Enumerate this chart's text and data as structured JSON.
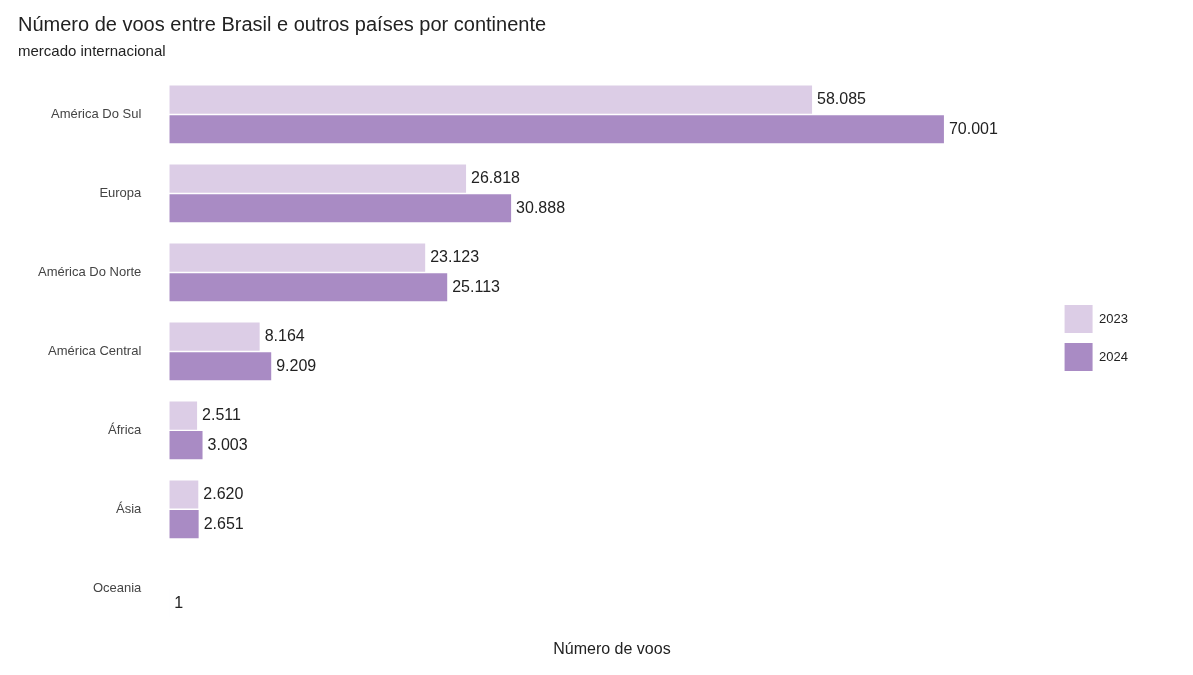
{
  "chart_data": {
    "type": "bar",
    "orientation": "horizontal",
    "title": "Número de voos entre Brasil e outros países por continente",
    "subtitle": "mercado internacional",
    "xlabel": "Número de voos",
    "categories": [
      "América Do Sul",
      "Europa",
      "América Do Norte",
      "América Central",
      "África",
      "Ásia",
      "Oceania"
    ],
    "series": [
      {
        "name": "2023",
        "color": "#dccde6",
        "values": [
          58085,
          26818,
          23123,
          8164,
          2511,
          2620,
          null
        ],
        "value_labels": [
          "58.085",
          "26.818",
          "23.123",
          "8.164",
          "2.511",
          "2.620",
          null
        ]
      },
      {
        "name": "2024",
        "color": "#a98bc4",
        "values": [
          70001,
          30888,
          25113,
          9209,
          3003,
          2651,
          1
        ],
        "value_labels": [
          "70.001",
          "30.888",
          "25.113",
          "9.209",
          "3.003",
          "2.651",
          "1"
        ]
      }
    ],
    "legend": "right",
    "grid": false,
    "tick_labels": "y"
  }
}
